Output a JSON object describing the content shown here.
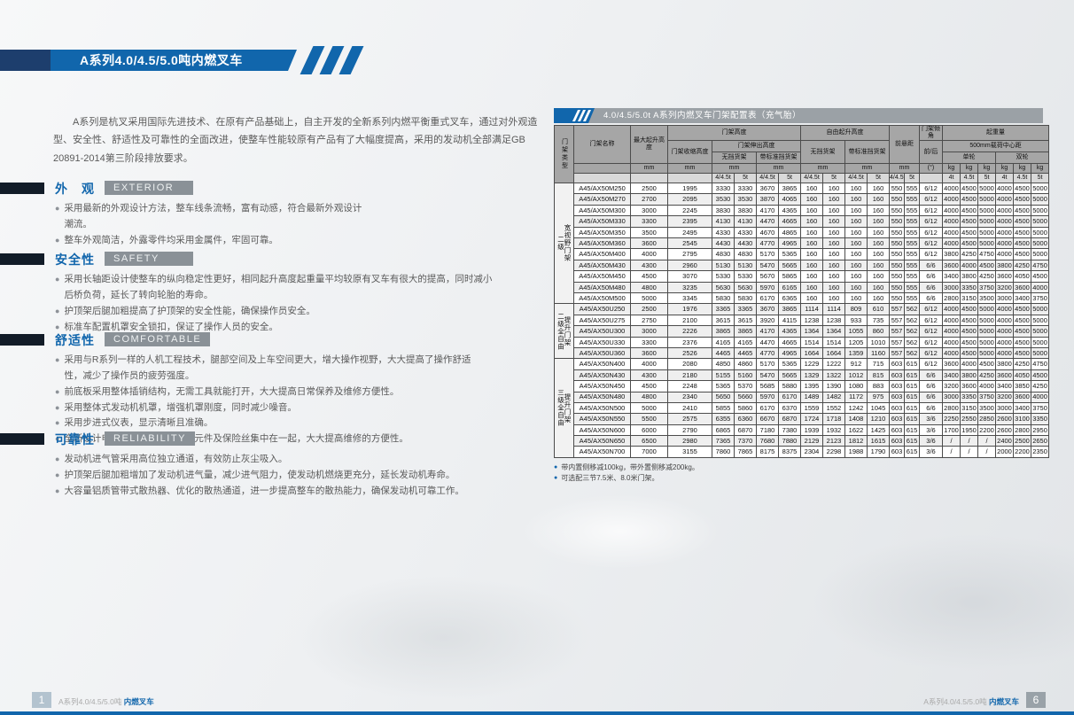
{
  "colors": {
    "accent_blue": "#1166ac",
    "dark_navy": "#1d3e6d",
    "section_gray": "#8a9197",
    "table_title_gray": "#9ba1a6",
    "table_header_gray": "#a6a6a6"
  },
  "titlebar": {
    "title": "A系列4.0/4.5/5.0吨内燃叉车"
  },
  "intro": {
    "text": "A系列是杭叉采用国际先进技术、在原有产品基础上，自主开发的全新系列内燃平衡重式叉车，通过对外观造\n型、安全性、舒适性及可靠性的全面改进，使整车性能较原有产品有了大幅度提高，采用的发动机全部满足GB\n20891-2014第三阶段排放要求。"
  },
  "sections": [
    {
      "zh": "外　观",
      "en": "EXTERIOR",
      "bullets": [
        "采用最新的外观设计方法，整车线条流畅，富有动感，符合最新外观设计\n潮流。",
        "整车外观简洁，外露零件均采用金属件，牢固可靠。"
      ]
    },
    {
      "zh": "安全性",
      "en": "SAFETY",
      "bullets": [
        "采用长轴距设计使整车的纵向稳定性更好，相同起升高度起重量平均较原有叉车有很大的提高，同时减小\n后桥负荷，延长了转向轮胎的寿命。",
        "护顶架后腿加粗提高了护顶架的安全性能，确保操作员安全。",
        "标准车配置机罩安全锁扣，保证了操作人员的安全。"
      ]
    },
    {
      "zh": "舒适性",
      "en": "COMFORTABLE",
      "bullets": [
        "采用与R系列一样的人机工程技术，腿部空间及上车空间更大，增大操作视野，大大提高了操作舒适\n性，减少了操作员的疲劳强度。",
        "前底板采用整体插销结构，无需工具就能打开，大大提高日常保养及维修方便性。",
        "采用整体式发动机机罩，增强机罩刚度，同时减少噪音。",
        "采用步进式仪表，显示清晰且准确。",
        "全新设计电气集成盒，把各电器元件及保险丝集中在一起，大大提高维修的方便性。"
      ]
    },
    {
      "zh": "可靠性",
      "en": "RELIABILITY",
      "bullets": [
        "发动机进气管采用高位独立通道，有效防止灰尘吸入。",
        "护顶架后腿加粗增加了发动机进气量，减少进气阻力，使发动机燃烧更充分，延长发动机寿命。",
        "大容量铝质管带式散热器、优化的散热通道，进一步提高整车的散热能力，确保发动机可靠工作。"
      ]
    }
  ],
  "table": {
    "title": "4.0/4.5/5.0t A系列内燃叉车门架配置表（充气胎）",
    "head": {
      "mast_type": "门架类型",
      "name": "门架名称",
      "max_lift": "最大起升高度",
      "mast_height": "门架高度",
      "collapsed": "门架收缩高度",
      "extended": "门架伸出高度",
      "no_backrest": "无挡货架",
      "std_backrest": "带标准挡货架",
      "free_lift": "自由起升高度",
      "overhang": "前悬距",
      "tilt": "门架倾角",
      "tilt_fr": "前/后",
      "capacity": "起重量",
      "load_center": "500mm载荷中心距",
      "single": "单轮",
      "double": "双轮",
      "mm": "mm",
      "deg": "(°)",
      "kg": "kg",
      "t445": "4/4.5t",
      "t5": "5t",
      "t4": "4t",
      "t45": "4.5t"
    },
    "groups": [
      {
        "label": "宽视野门架\n二级",
        "rows": [
          [
            "A45/AX50M250",
            "2500",
            "1995",
            "3330",
            "3330",
            "3670",
            "3865",
            "160",
            "160",
            "160",
            "160",
            "550",
            "555",
            "6/12",
            "4000",
            "4500",
            "5000",
            "4000",
            "4500",
            "5000"
          ],
          [
            "A45/AX50M270",
            "2700",
            "2095",
            "3530",
            "3530",
            "3870",
            "4065",
            "160",
            "160",
            "160",
            "160",
            "550",
            "555",
            "6/12",
            "4000",
            "4500",
            "5000",
            "4000",
            "4500",
            "5000"
          ],
          [
            "A45/AX50M300",
            "3000",
            "2245",
            "3830",
            "3830",
            "4170",
            "4365",
            "160",
            "160",
            "160",
            "160",
            "550",
            "555",
            "6/12",
            "4000",
            "4500",
            "5000",
            "4000",
            "4500",
            "5000"
          ],
          [
            "A45/AX50M330",
            "3300",
            "2395",
            "4130",
            "4130",
            "4470",
            "4665",
            "160",
            "160",
            "160",
            "160",
            "550",
            "555",
            "6/12",
            "4000",
            "4500",
            "5000",
            "4000",
            "4500",
            "5000"
          ],
          [
            "A45/AX50M350",
            "3500",
            "2495",
            "4330",
            "4330",
            "4670",
            "4865",
            "160",
            "160",
            "160",
            "160",
            "550",
            "555",
            "6/12",
            "4000",
            "4500",
            "5000",
            "4000",
            "4500",
            "5000"
          ],
          [
            "A45/AX50M360",
            "3600",
            "2545",
            "4430",
            "4430",
            "4770",
            "4965",
            "160",
            "160",
            "160",
            "160",
            "550",
            "555",
            "6/12",
            "4000",
            "4500",
            "5000",
            "4000",
            "4500",
            "5000"
          ],
          [
            "A45/AX50M400",
            "4000",
            "2795",
            "4830",
            "4830",
            "5170",
            "5365",
            "160",
            "160",
            "160",
            "160",
            "550",
            "555",
            "6/12",
            "3800",
            "4250",
            "4750",
            "4000",
            "4500",
            "5000"
          ],
          [
            "A45/AX50M430",
            "4300",
            "2960",
            "5130",
            "5130",
            "5470",
            "5665",
            "160",
            "160",
            "160",
            "160",
            "550",
            "555",
            "6/6",
            "3600",
            "4000",
            "4500",
            "3800",
            "4250",
            "4750"
          ],
          [
            "A45/AX50M450",
            "4500",
            "3070",
            "5330",
            "5330",
            "5670",
            "5865",
            "160",
            "160",
            "160",
            "160",
            "550",
            "555",
            "6/6",
            "3400",
            "3800",
            "4250",
            "3600",
            "4050",
            "4500"
          ],
          [
            "A45/AX50M480",
            "4800",
            "3235",
            "5630",
            "5630",
            "5970",
            "6165",
            "160",
            "160",
            "160",
            "160",
            "550",
            "555",
            "6/6",
            "3000",
            "3350",
            "3750",
            "3200",
            "3600",
            "4000"
          ],
          [
            "A45/AX50M500",
            "5000",
            "3345",
            "5830",
            "5830",
            "6170",
            "6365",
            "160",
            "160",
            "160",
            "160",
            "550",
            "555",
            "6/6",
            "2800",
            "3150",
            "3500",
            "3000",
            "3400",
            "3750"
          ]
        ]
      },
      {
        "label": "提升门架\n二级全自由",
        "rows": [
          [
            "A45/AX50U250",
            "2500",
            "1976",
            "3365",
            "3365",
            "3670",
            "3865",
            "1114",
            "1114",
            "809",
            "610",
            "557",
            "562",
            "6/12",
            "4000",
            "4500",
            "5000",
            "4000",
            "4500",
            "5000"
          ],
          [
            "A45/AX50U275",
            "2750",
            "2100",
            "3615",
            "3615",
            "3920",
            "4115",
            "1238",
            "1238",
            "933",
            "735",
            "557",
            "562",
            "6/12",
            "4000",
            "4500",
            "5000",
            "4000",
            "4500",
            "5000"
          ],
          [
            "A45/AX50U300",
            "3000",
            "2226",
            "3865",
            "3865",
            "4170",
            "4365",
            "1364",
            "1364",
            "1055",
            "860",
            "557",
            "562",
            "6/12",
            "4000",
            "4500",
            "5000",
            "4000",
            "4500",
            "5000"
          ],
          [
            "A45/AX50U330",
            "3300",
            "2376",
            "4165",
            "4165",
            "4470",
            "4665",
            "1514",
            "1514",
            "1205",
            "1010",
            "557",
            "562",
            "6/12",
            "4000",
            "4500",
            "5000",
            "4000",
            "4500",
            "5000"
          ],
          [
            "A45/AX50U360",
            "3600",
            "2526",
            "4465",
            "4465",
            "4770",
            "4965",
            "1664",
            "1664",
            "1359",
            "1160",
            "557",
            "562",
            "6/12",
            "4000",
            "4500",
            "5000",
            "4000",
            "4500",
            "5000"
          ]
        ]
      },
      {
        "label": "提升门架\n三级全自由",
        "rows": [
          [
            "A45/AX50N400",
            "4000",
            "2080",
            "4850",
            "4860",
            "5170",
            "5365",
            "1229",
            "1222",
            "912",
            "715",
            "603",
            "615",
            "6/12",
            "3600",
            "4000",
            "4500",
            "3800",
            "4250",
            "4750"
          ],
          [
            "A45/AX50N430",
            "4300",
            "2180",
            "5155",
            "5160",
            "5470",
            "5665",
            "1329",
            "1322",
            "1012",
            "815",
            "603",
            "615",
            "6/6",
            "3400",
            "3800",
            "4250",
            "3600",
            "4050",
            "4500"
          ],
          [
            "A45/AX50N450",
            "4500",
            "2248",
            "5365",
            "5370",
            "5685",
            "5880",
            "1395",
            "1390",
            "1080",
            "883",
            "603",
            "615",
            "6/6",
            "3200",
            "3600",
            "4000",
            "3400",
            "3850",
            "4250"
          ],
          [
            "A45/AX50N480",
            "4800",
            "2340",
            "5650",
            "5660",
            "5970",
            "6170",
            "1489",
            "1482",
            "1172",
            "975",
            "603",
            "615",
            "6/6",
            "3000",
            "3350",
            "3750",
            "3200",
            "3600",
            "4000"
          ],
          [
            "A45/AX50N500",
            "5000",
            "2410",
            "5855",
            "5860",
            "6170",
            "6370",
            "1559",
            "1552",
            "1242",
            "1045",
            "603",
            "615",
            "6/6",
            "2800",
            "3150",
            "3500",
            "3000",
            "3400",
            "3750"
          ],
          [
            "A45/AX50N550",
            "5500",
            "2575",
            "6355",
            "6360",
            "6670",
            "6870",
            "1724",
            "1718",
            "1408",
            "1210",
            "603",
            "615",
            "3/6",
            "2250",
            "2550",
            "2850",
            "2600",
            "3100",
            "3350"
          ],
          [
            "A45/AX50N600",
            "6000",
            "2790",
            "6865",
            "6870",
            "7180",
            "7380",
            "1939",
            "1932",
            "1622",
            "1425",
            "603",
            "615",
            "3/6",
            "1700",
            "1950",
            "2200",
            "2600",
            "2800",
            "2950"
          ],
          [
            "A45/AX50N650",
            "6500",
            "2980",
            "7365",
            "7370",
            "7680",
            "7880",
            "2129",
            "2123",
            "1812",
            "1615",
            "603",
            "615",
            "3/6",
            "/",
            "/",
            "/",
            "2400",
            "2500",
            "2650"
          ],
          [
            "A45/AX50N700",
            "7000",
            "3155",
            "7860",
            "7865",
            "8175",
            "8375",
            "2304",
            "2298",
            "1988",
            "1790",
            "603",
            "615",
            "3/6",
            "/",
            "/",
            "/",
            "2000",
            "2200",
            "2350"
          ]
        ]
      }
    ],
    "notes": [
      "带内置侧移减100kg，带外置侧移减200kg。",
      "可选配三节7.5米、8.0米门架。"
    ]
  },
  "footer": {
    "series": "A系列4.0/4.5/5.0吨 ",
    "product": "内燃叉车",
    "left_page": "1",
    "right_page": "6"
  }
}
